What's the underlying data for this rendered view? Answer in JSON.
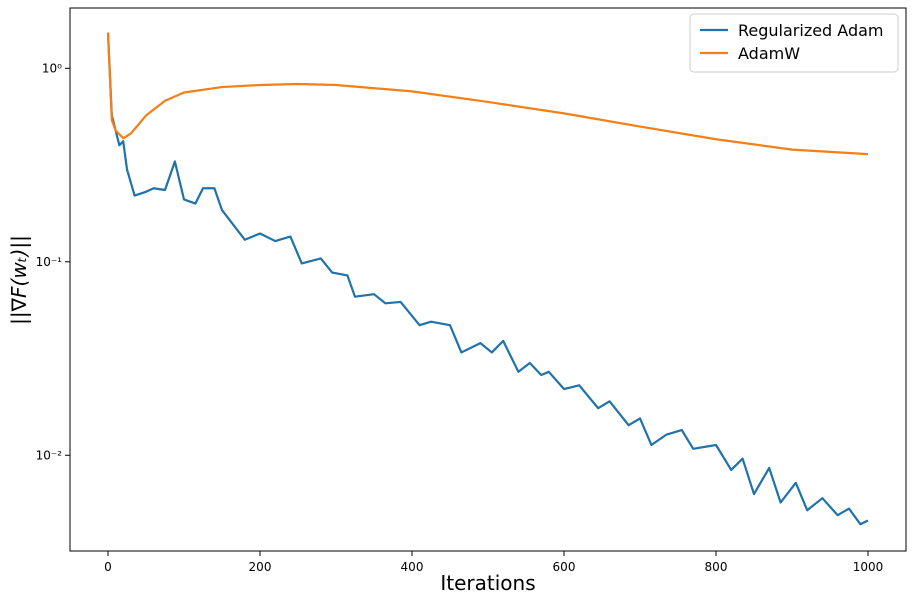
{
  "chart_data": {
    "type": "line",
    "x_label": "Iterations",
    "y_label": "||∇F(wₜ)||",
    "log_y": true,
    "legend": "upper right",
    "xlim": [
      -50,
      1050
    ],
    "xticks": [
      0,
      200,
      400,
      600,
      800,
      1000
    ],
    "ylim": [
      0.0032,
      2.05
    ],
    "yticks": [
      {
        "value": 0.01,
        "label": "10⁻²"
      },
      {
        "value": 0.1,
        "label": "10⁻¹"
      },
      {
        "value": 1,
        "label": "10⁰"
      }
    ],
    "series": [
      {
        "name": "Regularized Adam",
        "color": "#1f72aa",
        "x": [
          0,
          5,
          10,
          15,
          20,
          25,
          35,
          50,
          60,
          75,
          88,
          100,
          115,
          125,
          140,
          150,
          165,
          180,
          200,
          220,
          240,
          255,
          280,
          295,
          315,
          325,
          350,
          365,
          385,
          410,
          425,
          450,
          465,
          490,
          505,
          520,
          540,
          555,
          570,
          580,
          600,
          620,
          645,
          660,
          685,
          700,
          715,
          735,
          755,
          770,
          800,
          820,
          835,
          850,
          870,
          885,
          905,
          920,
          940,
          960,
          975,
          990,
          1000
        ],
        "values": [
          1.53,
          0.57,
          0.478,
          0.4,
          0.42,
          0.3,
          0.22,
          0.23,
          0.24,
          0.235,
          0.33,
          0.21,
          0.2,
          0.24,
          0.24,
          0.185,
          0.155,
          0.13,
          0.14,
          0.128,
          0.135,
          0.098,
          0.104,
          0.088,
          0.085,
          0.066,
          0.068,
          0.061,
          0.062,
          0.047,
          0.049,
          0.047,
          0.034,
          0.038,
          0.034,
          0.039,
          0.027,
          0.03,
          0.026,
          0.027,
          0.022,
          0.023,
          0.0175,
          0.019,
          0.0143,
          0.0155,
          0.0113,
          0.0128,
          0.0135,
          0.0108,
          0.0113,
          0.0084,
          0.0096,
          0.0063,
          0.0086,
          0.0057,
          0.0072,
          0.0052,
          0.006,
          0.0049,
          0.0053,
          0.0044,
          0.0046
        ]
      },
      {
        "name": "AdamW",
        "color": "#f57f17",
        "x": [
          0,
          5,
          10,
          20,
          30,
          50,
          75,
          100,
          150,
          200,
          250,
          300,
          400,
          500,
          600,
          700,
          800,
          900,
          1000
        ],
        "values": [
          1.53,
          0.54,
          0.478,
          0.435,
          0.46,
          0.57,
          0.68,
          0.75,
          0.8,
          0.82,
          0.83,
          0.82,
          0.76,
          0.67,
          0.585,
          0.5,
          0.43,
          0.38,
          0.36
        ]
      }
    ]
  }
}
